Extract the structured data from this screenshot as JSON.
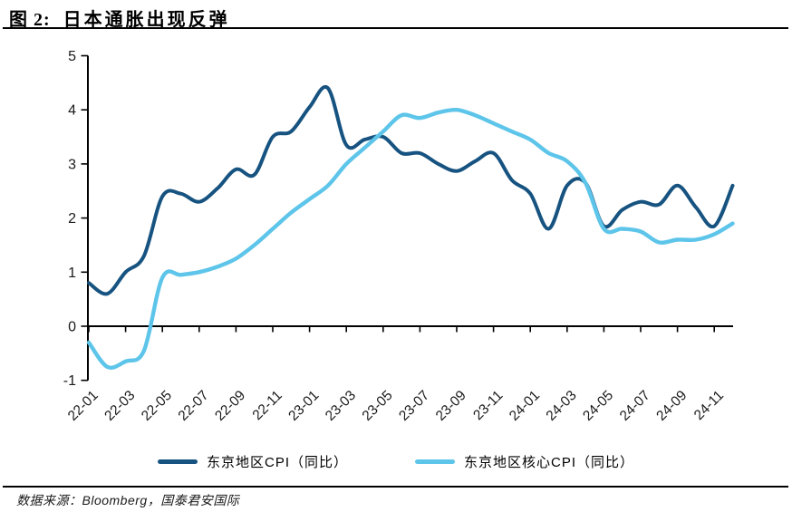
{
  "header": {
    "figure_label": "图 2:",
    "title": "日本通胀出现反弹"
  },
  "legend": [
    {
      "label": "东京地区CPI（同比）",
      "color": "#175380"
    },
    {
      "label": "东京地区核心CPI（同比）",
      "color": "#5ec5ea"
    }
  ],
  "source": {
    "text": "数据来源：Bloomberg，国泰君安国际"
  },
  "chart_data": {
    "type": "line",
    "title": "日本通胀出现反弹",
    "xlabel": "",
    "ylabel": "",
    "ylim": [
      -1,
      5
    ],
    "yticks": [
      5,
      4,
      3,
      2,
      1,
      0,
      -1
    ],
    "grid": false,
    "smoothing": "spline",
    "legend_position": "bottom",
    "x": [
      "22-01",
      "22-02",
      "22-03",
      "22-04",
      "22-05",
      "22-06",
      "22-07",
      "22-08",
      "22-09",
      "22-10",
      "22-11",
      "22-12",
      "23-01",
      "23-02",
      "23-03",
      "23-04",
      "23-05",
      "23-06",
      "23-07",
      "23-08",
      "23-09",
      "23-10",
      "23-11",
      "23-12",
      "24-01",
      "24-02",
      "24-03",
      "24-04",
      "24-05",
      "24-06",
      "24-07",
      "24-08",
      "24-09",
      "24-10",
      "24-11",
      "24-12"
    ],
    "x_tick_labels": [
      "22-01",
      "22-03",
      "22-05",
      "22-07",
      "22-09",
      "22-11",
      "23-01",
      "23-03",
      "23-05",
      "23-07",
      "23-09",
      "23-11",
      "24-01",
      "24-03",
      "24-05",
      "24-07",
      "24-09",
      "24-11"
    ],
    "series": [
      {
        "name": "东京地区CPI（同比）",
        "color": "#175380",
        "stroke_width": 4.0,
        "values": [
          0.8,
          0.6,
          1.0,
          1.3,
          2.4,
          2.45,
          2.3,
          2.55,
          2.9,
          2.8,
          3.5,
          3.6,
          4.05,
          4.4,
          3.35,
          3.45,
          3.5,
          3.2,
          3.2,
          3.0,
          2.87,
          3.05,
          3.2,
          2.7,
          2.45,
          1.8,
          2.6,
          2.65,
          1.85,
          2.15,
          2.3,
          2.25,
          2.6,
          2.2,
          1.85,
          2.6
        ]
      },
      {
        "name": "东京地区核心CPI（同比）",
        "color": "#5ec5ea",
        "stroke_width": 4.4,
        "values": [
          -0.3,
          -0.75,
          -0.65,
          -0.45,
          0.9,
          0.95,
          1.0,
          1.1,
          1.25,
          1.5,
          1.8,
          2.1,
          2.35,
          2.6,
          3.0,
          3.3,
          3.6,
          3.9,
          3.85,
          3.95,
          4.0,
          3.9,
          3.75,
          3.6,
          3.45,
          3.2,
          3.05,
          2.65,
          1.8,
          1.8,
          1.75,
          1.55,
          1.6,
          1.6,
          1.7,
          1.9
        ]
      }
    ]
  }
}
